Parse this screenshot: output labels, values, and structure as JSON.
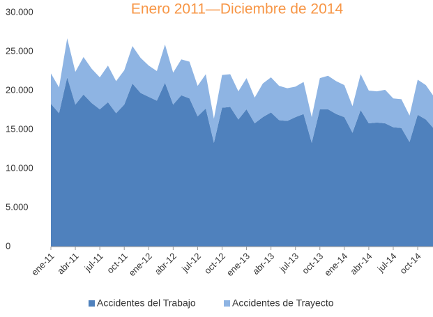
{
  "chart_data": {
    "type": "stacked_area",
    "title": "Enero 2011—Diciembre de 2014",
    "categories": [
      "ene-11",
      null,
      null,
      "abr-11",
      null,
      null,
      "jul-11",
      null,
      null,
      "oct-11",
      null,
      null,
      "ene-12",
      null,
      null,
      "abr-12",
      null,
      null,
      "jul-12",
      null,
      null,
      "oct-12",
      null,
      null,
      "ene-13",
      null,
      null,
      "abr-13",
      null,
      null,
      "jul-13",
      null,
      null,
      "oct-13",
      null,
      null,
      "ene-14",
      null,
      null,
      "abr-14",
      null,
      null,
      "jul-14",
      null,
      null,
      "oct-14",
      null,
      null
    ],
    "series": [
      {
        "name": "Accidentes del Trabajo",
        "color": "#4f81bd",
        "values": [
          18300,
          17100,
          21700,
          18200,
          19500,
          18400,
          17600,
          18500,
          17100,
          18200,
          20900,
          19700,
          19200,
          18700,
          21000,
          18200,
          19400,
          19000,
          16700,
          17700,
          13300,
          17800,
          17900,
          16300,
          17600,
          15800,
          16600,
          17200,
          16200,
          16100,
          16600,
          17000,
          13300,
          17600,
          17600,
          17000,
          16600,
          14600,
          17500,
          15800,
          15900,
          15800,
          15300,
          15200,
          13400,
          16900,
          16300,
          15100
        ]
      },
      {
        "name": "Accidentes de Trayecto",
        "color": "#8eb4e3",
        "values": [
          3900,
          3300,
          5000,
          4200,
          4800,
          4400,
          4100,
          4700,
          4100,
          4400,
          4800,
          4500,
          4000,
          3800,
          4900,
          4100,
          4600,
          4700,
          3900,
          4400,
          3100,
          4200,
          4200,
          3600,
          4000,
          3300,
          4300,
          4500,
          4400,
          4200,
          3900,
          4100,
          3300,
          4000,
          4300,
          4200,
          4100,
          3400,
          4600,
          4200,
          4000,
          4300,
          3700,
          3700,
          3400,
          4500,
          4400,
          4100
        ]
      }
    ],
    "ylim": [
      0,
      30000
    ],
    "yticks": [
      0,
      {
        "value": 5000,
        "label": "5.000"
      },
      {
        "value": 10000,
        "label": "10.000"
      },
      {
        "value": 15000,
        "label": "15.000"
      },
      {
        "value": 20000,
        "label": "20.000"
      },
      {
        "value": 25000,
        "label": "25.000"
      },
      {
        "value": 30000,
        "label": "30.000"
      }
    ],
    "grid": false,
    "legend": "bottom"
  }
}
